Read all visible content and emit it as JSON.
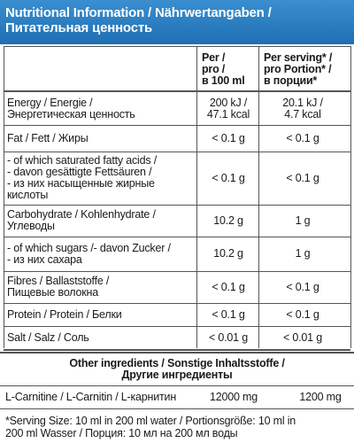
{
  "header": {
    "title": [
      "Nutritional Information / Nährwertangaben /",
      "Питательная ценность"
    ]
  },
  "table": {
    "columns": [
      [
        "Per /",
        "pro /",
        "в 100 ml"
      ],
      [
        "Per serving* /",
        "pro Portion* /",
        "в порции*"
      ]
    ],
    "rows": [
      {
        "label": [
          "Energy / Energie /",
          "Энергетическая ценность"
        ],
        "per100": [
          "200 kJ /",
          "47.1 kcal"
        ],
        "serving": [
          "20.1 kJ /",
          "4.7 kcal"
        ]
      },
      {
        "label": [
          "Fat / Fett / Жиры"
        ],
        "per100": [
          "< 0.1 g"
        ],
        "serving": [
          "< 0.1 g"
        ]
      },
      {
        "label": [
          "- of which saturated fatty acids /",
          "- davon gesättigte Fettsäuren /",
          "- из них насыщенные жирные",
          "кислоты"
        ],
        "per100": [
          "< 0.1 g"
        ],
        "serving": [
          "< 0.1 g"
        ]
      },
      {
        "label": [
          "Carbohydrate / Kohlenhydrate /",
          "Углеводы"
        ],
        "per100": [
          "10.2 g"
        ],
        "serving": [
          "1 g"
        ]
      },
      {
        "label": [
          "- of which sugars /- davon Zucker /",
          "- из них сахара"
        ],
        "per100": [
          "10.2 g"
        ],
        "serving": [
          "1 g"
        ]
      },
      {
        "label": [
          "Fibres / Ballaststoffe /",
          "Пищевые волокна"
        ],
        "per100": [
          "< 0.1 g"
        ],
        "serving": [
          "< 0.1 g"
        ]
      },
      {
        "label": [
          "Protein / Protein / Белки"
        ],
        "per100": [
          "< 0.1 g"
        ],
        "serving": [
          "< 0.1 g"
        ]
      },
      {
        "label": [
          "Salt / Salz / Соль"
        ],
        "per100": [
          "< 0.01 g"
        ],
        "serving": [
          "< 0.01 g"
        ]
      }
    ]
  },
  "other": {
    "title": [
      "Other ingredients / Sonstige Inhaltsstoffe /",
      "Другие ингредиенты"
    ],
    "rows": [
      {
        "label": "L-Carnitine / L-Carnitin / L-карнитин",
        "per100": "12000 mg",
        "serving": "1200 mg"
      }
    ]
  },
  "footnote": [
    "*Serving Size: 10 ml in 200 ml water / Portionsgröße: 10 ml in",
    "200 ml Wasser / Порция: 10 мл на 200 мл воды"
  ]
}
